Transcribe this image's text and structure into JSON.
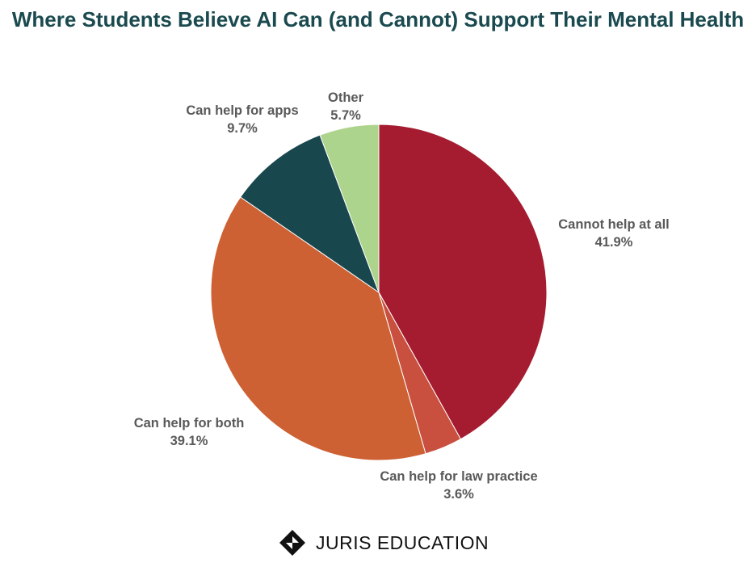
{
  "chart_data": {
    "type": "pie",
    "title": "Where Students Believe AI Can (and Cannot) Support Their Mental Health",
    "start_angle_deg": 0,
    "direction": "clockwise",
    "slices": [
      {
        "label": "Cannot help at all",
        "value": 41.9,
        "value_label": "41.9%",
        "color": "#a51c30"
      },
      {
        "label": "Can help for law practice",
        "value": 3.6,
        "value_label": "3.6%",
        "color": "#c9503f"
      },
      {
        "label": "Can help for both",
        "value": 39.1,
        "value_label": "39.1%",
        "color": "#cd6133"
      },
      {
        "label": "Can help for apps",
        "value": 9.7,
        "value_label": "9.7%",
        "color": "#18474e"
      },
      {
        "label": "Other",
        "value": 5.7,
        "value_label": "5.7%",
        "color": "#add48c"
      }
    ]
  },
  "footer": {
    "brand": "JURIS EDUCATION",
    "logo_icon": "juris-logo-icon"
  }
}
